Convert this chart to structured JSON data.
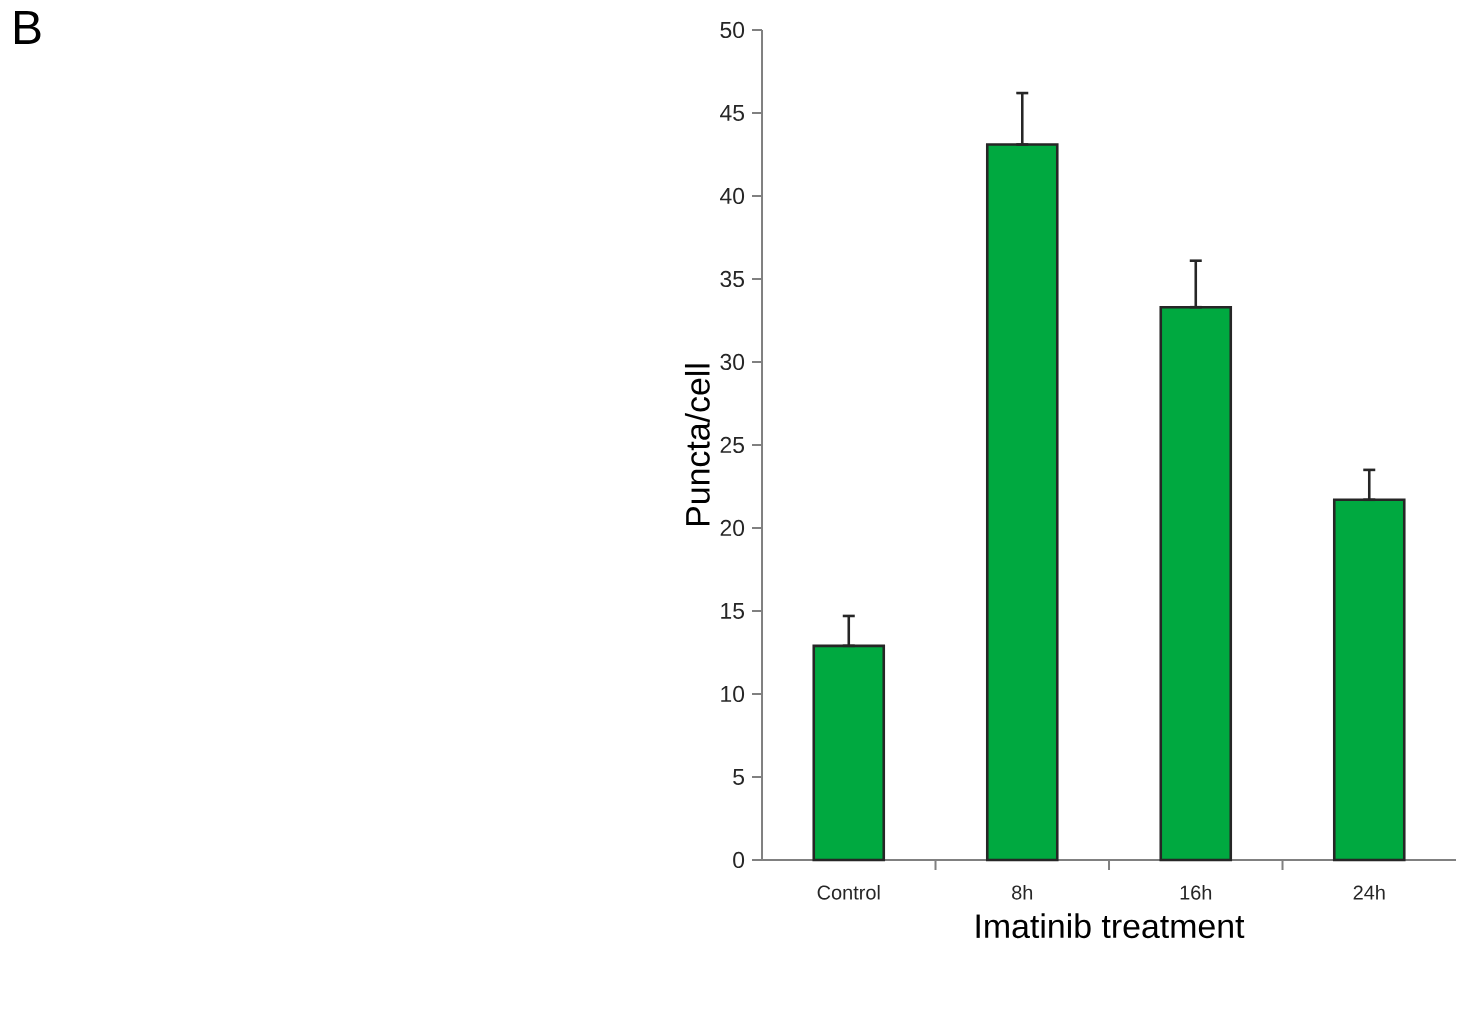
{
  "chart_data": {
    "type": "bar",
    "xlabel": "Imatinib treatment",
    "ylabel": "Puncta/cell",
    "categories": [
      "Control",
      "8h",
      "16h",
      "24h"
    ],
    "values": [
      12.9,
      43.1,
      33.3,
      21.7
    ],
    "errors": [
      [
        12.9,
        14.7
      ],
      [
        43.1,
        46.2
      ],
      [
        33.3,
        36.1
      ],
      [
        21.7,
        23.5
      ]
    ],
    "color": "#00a940",
    "ylim": [
      0,
      50
    ],
    "yticks": [
      0,
      5,
      10,
      15,
      20,
      25,
      30,
      35,
      40,
      45,
      50
    ],
    "annotations": [
      "B"
    ]
  }
}
